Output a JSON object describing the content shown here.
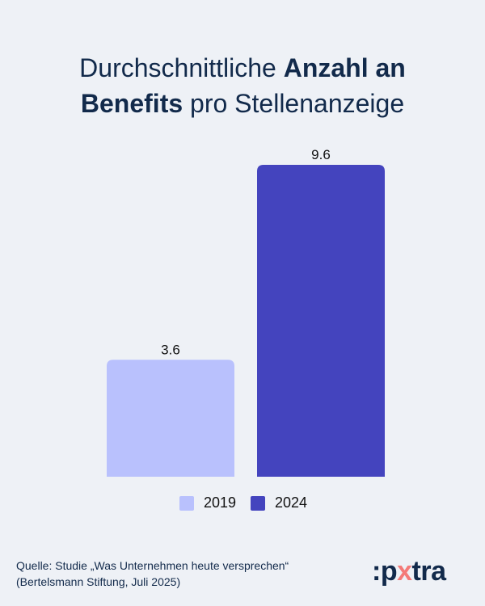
{
  "title": {
    "part1": "Durchschnittliche ",
    "bold1": "Anzahl an",
    "bold2": "Benefits",
    "part2": " pro Stellenanzeige"
  },
  "chart_data": {
    "type": "bar",
    "title": "Durchschnittliche Anzahl an Benefits pro Stellenanzeige",
    "categories": [
      "2019",
      "2024"
    ],
    "series": [
      {
        "name": "2019",
        "values": [
          3.6,
          null
        ]
      },
      {
        "name": "2024",
        "values": [
          null,
          9.6
        ]
      }
    ],
    "values": [
      3.6,
      9.6
    ],
    "data_labels": [
      "3.6",
      "9.6"
    ],
    "colors": [
      "#b9c1fd",
      "#4444be"
    ],
    "ylim": [
      0,
      9.6
    ],
    "grid": false,
    "legend_position": "bottom",
    "legend": [
      "2019",
      "2024"
    ]
  },
  "source": {
    "line1": "Quelle: Studie „Was Unternehmen heute versprechen“",
    "line2": "(Bertelsmann Stiftung, Juli 2025)"
  },
  "logo": {
    "text": ":pxtra",
    "prefix": ":p",
    "x": "x",
    "suffix": "tra",
    "accent_color": "#f47a78"
  }
}
